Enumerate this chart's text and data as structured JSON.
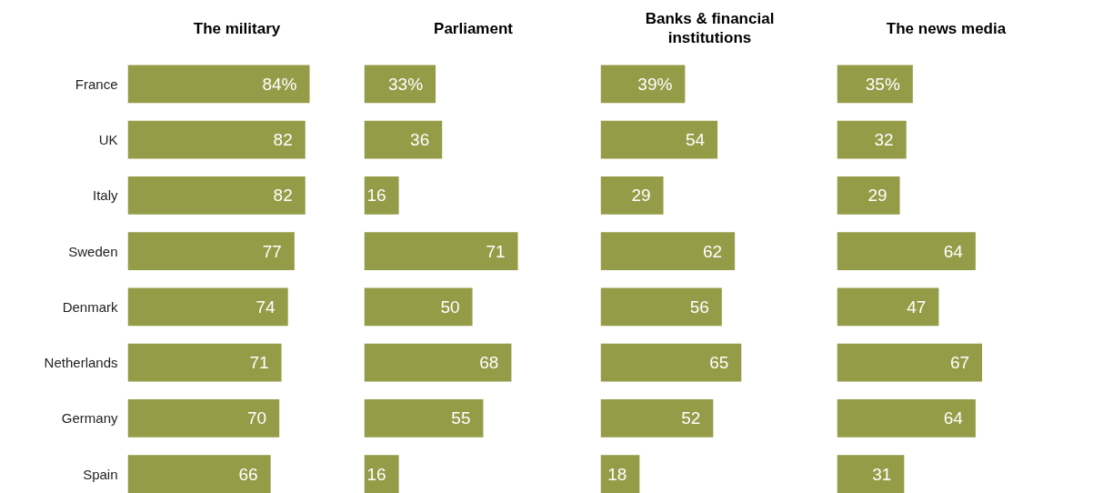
{
  "chart_data": [
    {
      "type": "bar",
      "orientation": "horizontal",
      "title": "The military",
      "categories": [
        "France",
        "UK",
        "Italy",
        "Sweden",
        "Denmark",
        "Netherlands",
        "Germany",
        "Spain"
      ],
      "values": [
        84,
        82,
        82,
        77,
        74,
        71,
        70,
        66
      ],
      "value_labels": [
        "84%",
        "82",
        "82",
        "77",
        "74",
        "71",
        "70",
        "66"
      ],
      "color": "#959c48",
      "tick_labels": "y"
    },
    {
      "type": "bar",
      "orientation": "horizontal",
      "title": "Parliament",
      "values": [
        33,
        36,
        16,
        71,
        50,
        68,
        55,
        16
      ],
      "value_labels": [
        "33%",
        "36",
        "16",
        "71",
        "50",
        "68",
        "55",
        "16"
      ],
      "color": "#959c48",
      "tick_labels": false
    },
    {
      "type": "bar",
      "orientation": "horizontal",
      "title": "Banks & financial\ninstitutions",
      "values": [
        39,
        54,
        29,
        62,
        56,
        65,
        52,
        18
      ],
      "value_labels": [
        "39%",
        "54",
        "29",
        "62",
        "56",
        "65",
        "52",
        "18"
      ],
      "color": "#959c48",
      "tick_labels": false
    },
    {
      "type": "bar",
      "orientation": "horizontal",
      "title": "The news media",
      "values": [
        35,
        32,
        29,
        64,
        47,
        67,
        64,
        31
      ],
      "value_labels": [
        "35%",
        "32",
        "29",
        "64",
        "47",
        "67",
        "64",
        "31"
      ],
      "color": "#959c48",
      "tick_labels": false
    }
  ]
}
